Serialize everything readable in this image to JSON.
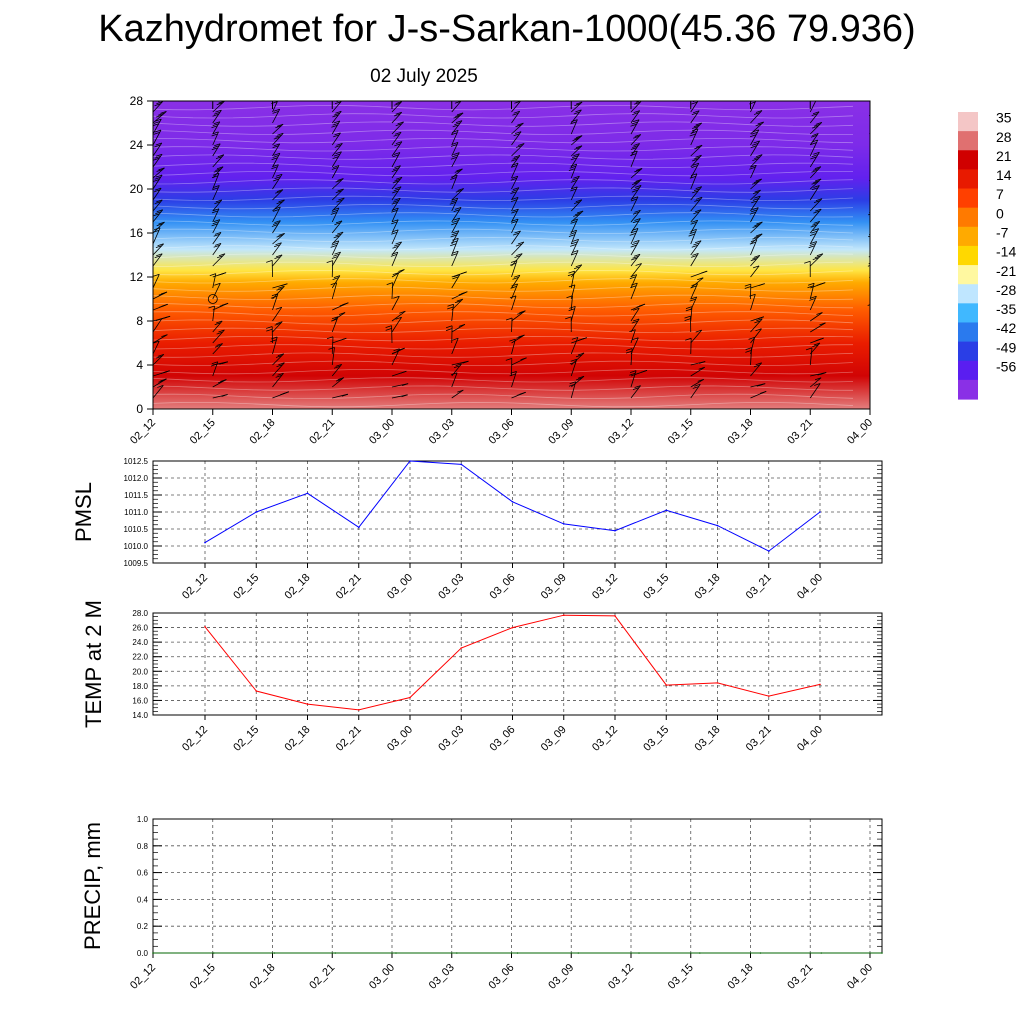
{
  "page": {
    "title": "Kazhydromet for J-s-Sarkan-1000(45.36 79.936)",
    "subtitle": "02 July 2025"
  },
  "colors": {
    "pmsl_line": "#0000ff",
    "temp_line": "#ff0000",
    "precip_line": "#006400",
    "grid": "#555555"
  },
  "chart_data": [
    {
      "id": "cross_section",
      "type": "heatmap",
      "x_ticks": [
        "02_12",
        "02_15",
        "02_18",
        "02_21",
        "03_00",
        "03_03",
        "03_06",
        "03_09",
        "03_12",
        "03_15",
        "03_18",
        "03_21",
        "04_00"
      ],
      "y_ticks": [
        0,
        4,
        8,
        12,
        16,
        20,
        24,
        28
      ],
      "ylim": [
        0,
        28
      ],
      "colorbar": {
        "labels": [
          "35",
          "28",
          "21",
          "14",
          "7",
          "0",
          "-7",
          "-14",
          "-21",
          "-28",
          "-35",
          "-42",
          "-49",
          "-56"
        ],
        "colors": [
          "#f4c6c6",
          "#e07070",
          "#d00000",
          "#e81a00",
          "#ff4000",
          "#ff7a00",
          "#ffaa00",
          "#ffd800",
          "#fff8a0",
          "#bfe6ff",
          "#40b8ff",
          "#2a7aee",
          "#2a3ee6",
          "#5a1ef0",
          "#8a30e6"
        ]
      },
      "temperature_profile": [
        {
          "level": 0,
          "value": 32
        },
        {
          "level": 3,
          "value": 24
        },
        {
          "level": 6,
          "value": 16
        },
        {
          "level": 9,
          "value": 6
        },
        {
          "level": 11.5,
          "value": -5
        },
        {
          "level": 12.6,
          "value": -15
        },
        {
          "level": 14.5,
          "value": -26
        },
        {
          "level": 17,
          "value": -38
        },
        {
          "level": 19,
          "value": -48
        },
        {
          "level": 21,
          "value": -56
        },
        {
          "level": 24,
          "value": -60
        },
        {
          "level": 28,
          "value": -62
        }
      ],
      "wind_barbs": "present"
    },
    {
      "id": "pmsl",
      "type": "line",
      "ylabel": "PMSL",
      "x": [
        "02_12",
        "02_15",
        "02_18",
        "02_21",
        "03_00",
        "03_03",
        "03_06",
        "03_09",
        "03_12",
        "03_15",
        "03_18",
        "03_21",
        "04_00"
      ],
      "values": [
        1010.1,
        1011.0,
        1011.55,
        1010.55,
        1012.5,
        1012.4,
        1011.3,
        1010.65,
        1010.45,
        1011.05,
        1010.6,
        1009.85,
        1011.0
      ],
      "y_ticks": [
        "1009.5",
        "1010.0",
        "1010.5",
        "1011.0",
        "1011.5",
        "1012.0",
        "1012.5"
      ],
      "ylim": [
        1009.5,
        1012.5
      ],
      "grid": true
    },
    {
      "id": "temp2m",
      "type": "line",
      "ylabel": "TEMP at 2 M",
      "x": [
        "02_12",
        "02_15",
        "02_18",
        "02_21",
        "03_00",
        "03_03",
        "03_06",
        "03_09",
        "03_12",
        "03_15",
        "03_18",
        "03_21",
        "04_00"
      ],
      "values": [
        26.1,
        17.3,
        15.5,
        14.7,
        16.4,
        23.2,
        26.0,
        27.7,
        27.6,
        18.1,
        18.4,
        16.6,
        18.2
      ],
      "y_ticks": [
        "14.0",
        "16.0",
        "18.0",
        "20.0",
        "22.0",
        "24.0",
        "26.0",
        "28.0"
      ],
      "ylim": [
        14,
        28
      ],
      "grid": true
    },
    {
      "id": "precip",
      "type": "line",
      "ylabel": "PRECIP, mm",
      "x": [
        "02_12",
        "02_15",
        "02_18",
        "02_21",
        "03_00",
        "03_03",
        "03_06",
        "03_09",
        "03_12",
        "03_15",
        "03_18",
        "03_21",
        "04_00"
      ],
      "values": [
        0,
        0,
        0,
        0,
        0,
        0,
        0,
        0,
        0,
        0,
        0,
        0,
        0
      ],
      "y_ticks": [
        "0.0",
        "0.2",
        "0.4",
        "0.6",
        "0.8",
        "1.0"
      ],
      "ylim": [
        0,
        1
      ],
      "grid": true
    }
  ]
}
